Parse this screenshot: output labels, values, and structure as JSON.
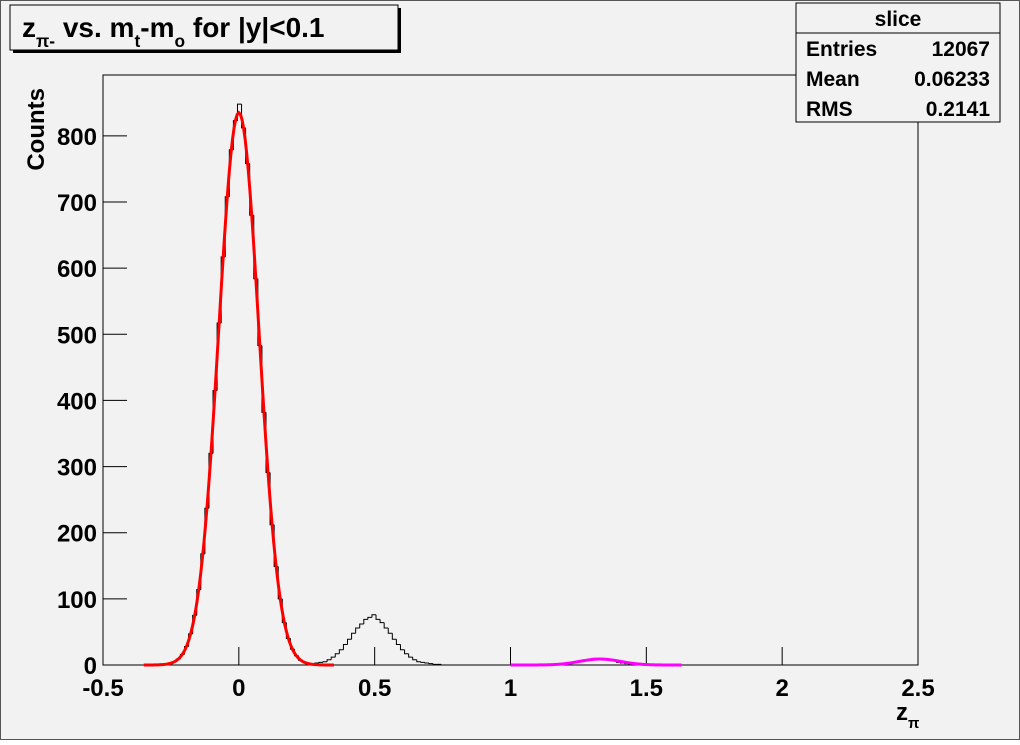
{
  "chart_data": {
    "type": "histogram",
    "title": [
      {
        "text": "z",
        "sub": false
      },
      {
        "text": "π-",
        "sub": true
      },
      {
        "text": " vs. m",
        "sub": false
      },
      {
        "text": "t",
        "sub": true
      },
      {
        "text": "-m",
        "sub": false
      },
      {
        "text": "o",
        "sub": true
      },
      {
        "text": " for |y|<0.1",
        "sub": false
      }
    ],
    "xlabel": [
      {
        "text": "z",
        "sub": false
      },
      {
        "text": "π",
        "sub": true
      }
    ],
    "ylabel": "Counts",
    "stats": {
      "title": "slice",
      "rows": [
        {
          "label": "Entries",
          "value": 12067
        },
        {
          "label": "Mean",
          "value": 0.06233
        },
        {
          "label": "RMS",
          "value": 0.2141
        }
      ]
    },
    "color": "#000000",
    "bins": [
      -0.305,
      -0.29,
      -0.275,
      -0.26,
      -0.245,
      -0.23,
      -0.215,
      -0.2,
      -0.185,
      -0.17,
      -0.155,
      -0.14,
      -0.125,
      -0.11,
      -0.095,
      -0.08,
      -0.065,
      -0.05,
      -0.035,
      -0.02,
      -0.005,
      0.01,
      0.025,
      0.04,
      0.055,
      0.07,
      0.085,
      0.1,
      0.115,
      0.13,
      0.145,
      0.16,
      0.175,
      0.19,
      0.205,
      0.22,
      0.235,
      0.25,
      0.265,
      0.28,
      0.295,
      0.31,
      0.325,
      0.34,
      0.355,
      0.37,
      0.385,
      0.4,
      0.415,
      0.43,
      0.445,
      0.46,
      0.475,
      0.49,
      0.505,
      0.52,
      0.535,
      0.55,
      0.565,
      0.58,
      0.595,
      0.61,
      0.625,
      0.64,
      0.655,
      0.67,
      0.685,
      0.7,
      0.715,
      0.73,
      0.745,
      0.76,
      0.775,
      0.79,
      0.805,
      0.82,
      0.835,
      0.85,
      0.865,
      0.88,
      0.895,
      0.91,
      0.925,
      0.94,
      0.955,
      0.97,
      0.985,
      1.0,
      1.015,
      1.03,
      1.045,
      1.06,
      1.075,
      1.09,
      1.105,
      1.12,
      1.135,
      1.15,
      1.165,
      1.18,
      1.195,
      1.21,
      1.225,
      1.24,
      1.255,
      1.27,
      1.285,
      1.3,
      1.315,
      1.33,
      1.345,
      1.36,
      1.375,
      1.39,
      1.405,
      1.42,
      1.435,
      1.45,
      1.465,
      1.48,
      1.495
    ],
    "counts": [
      0,
      1,
      1,
      2,
      5,
      9,
      16,
      28,
      47,
      75,
      114,
      168,
      237,
      320,
      415,
      517,
      617,
      708,
      779,
      823,
      848,
      812,
      758,
      680,
      584,
      483,
      382,
      291,
      212,
      149,
      100,
      64,
      40,
      24,
      14,
      7,
      4,
      2,
      1,
      3,
      4,
      5,
      8,
      12,
      17,
      23,
      31,
      39,
      48,
      56,
      62,
      69,
      72,
      76,
      69,
      64,
      56,
      48,
      39,
      31,
      23,
      17,
      12,
      8,
      5,
      4,
      3,
      2,
      1,
      1,
      0,
      0,
      0,
      0,
      0,
      0,
      0,
      0,
      0,
      0,
      0,
      0,
      0,
      0,
      0,
      0,
      0,
      0,
      0,
      0,
      0,
      0,
      0,
      0,
      0,
      0,
      0,
      0,
      0,
      1,
      1,
      2,
      3,
      5,
      6,
      8,
      9,
      10,
      10,
      10,
      9,
      7,
      6,
      4,
      3,
      2,
      1,
      1,
      0,
      0
    ],
    "fits": [
      {
        "color": "#ff0000",
        "amplitude": 835,
        "mean": 0,
        "sigma": 0.074,
        "range": [
          -0.35,
          0.35
        ]
      },
      {
        "color": "#ff00ff",
        "amplitude": 9,
        "mean": 1.33,
        "sigma": 0.075,
        "range": [
          1.0,
          1.63
        ]
      }
    ],
    "xlim": [
      -0.5,
      2.5
    ],
    "xticks": [
      -0.5,
      0,
      0.5,
      1,
      1.5,
      2,
      2.5
    ],
    "ylim": [
      0,
      892
    ],
    "yticks": [
      0,
      100,
      200,
      300,
      400,
      500,
      600,
      700,
      800
    ]
  }
}
